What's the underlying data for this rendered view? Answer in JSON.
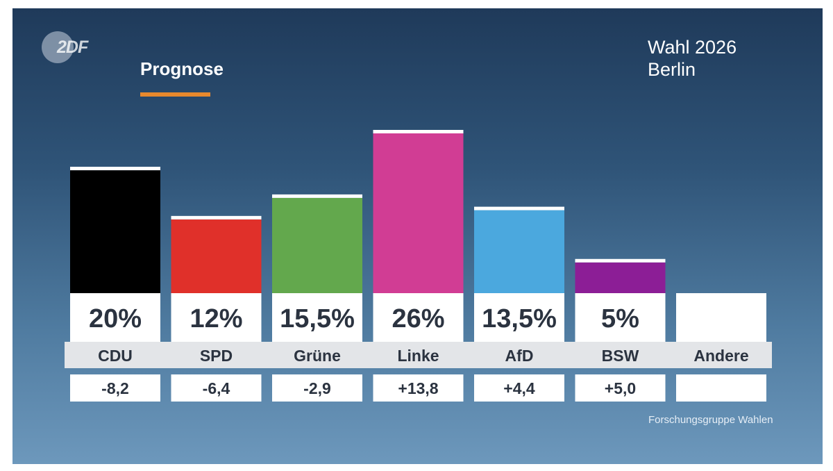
{
  "broadcaster": {
    "logo_text": "2DF"
  },
  "header": {
    "label": "Prognose",
    "title_line1": "Wahl 2026",
    "title_line2": "Berlin"
  },
  "source": "Forschungsgruppe Wahlen",
  "colors": {
    "accent": "#e8892d",
    "label_bg": "#e3e5e8",
    "box_bg": "#ffffff"
  },
  "chart_data": {
    "type": "bar",
    "categories": [
      "CDU",
      "SPD",
      "Grüne",
      "Linke",
      "AfD",
      "BSW",
      "Andere"
    ],
    "values": [
      20,
      12,
      15.5,
      26,
      13.5,
      5,
      null
    ],
    "value_labels": [
      "20%",
      "12%",
      "15,5%",
      "26%",
      "13,5%",
      "5%",
      ""
    ],
    "changes": [
      "-8,2",
      "-6,4",
      "-2,9",
      "+13,8",
      "+4,4",
      "+5,0",
      ""
    ],
    "bar_colors": [
      "#000000",
      "#e0302a",
      "#63a84d",
      "#d13d94",
      "#4ba8de",
      "#8c1e96",
      "#ffffff"
    ],
    "ylim": [
      0,
      26
    ],
    "title": "Prognose",
    "grid": false
  }
}
